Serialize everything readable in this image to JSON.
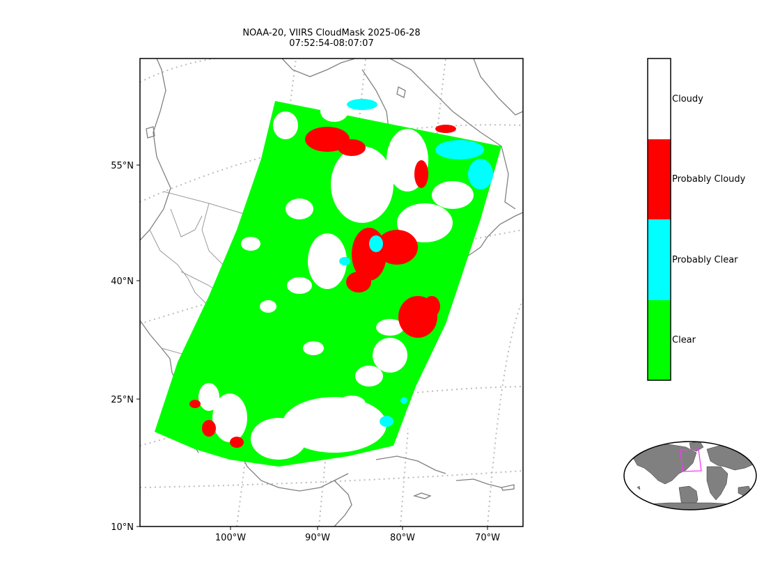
{
  "title": {
    "line1": "NOAA-20, VIIRS CloudMask 2025-06-28",
    "line2": "07:52:54-08:07:07"
  },
  "map": {
    "lat_ticks": [
      "55°N",
      "40°N",
      "25°N",
      "10°N"
    ],
    "lon_ticks": [
      "100°W",
      "90°W",
      "80°W",
      "70°W"
    ],
    "gridline_color": "#bbbbbb",
    "coastline_color": "#808080"
  },
  "colorbar": {
    "classes": [
      {
        "label": "Cloudy",
        "color": "#ffffff"
      },
      {
        "label": "Probably Cloudy",
        "color": "#ff0000"
      },
      {
        "label": "Probably Clear",
        "color": "#00ffff"
      },
      {
        "label": "Clear",
        "color": "#00ff00"
      }
    ]
  },
  "inset": {
    "land_color": "#808080",
    "outline_color": "#ff33ff"
  }
}
